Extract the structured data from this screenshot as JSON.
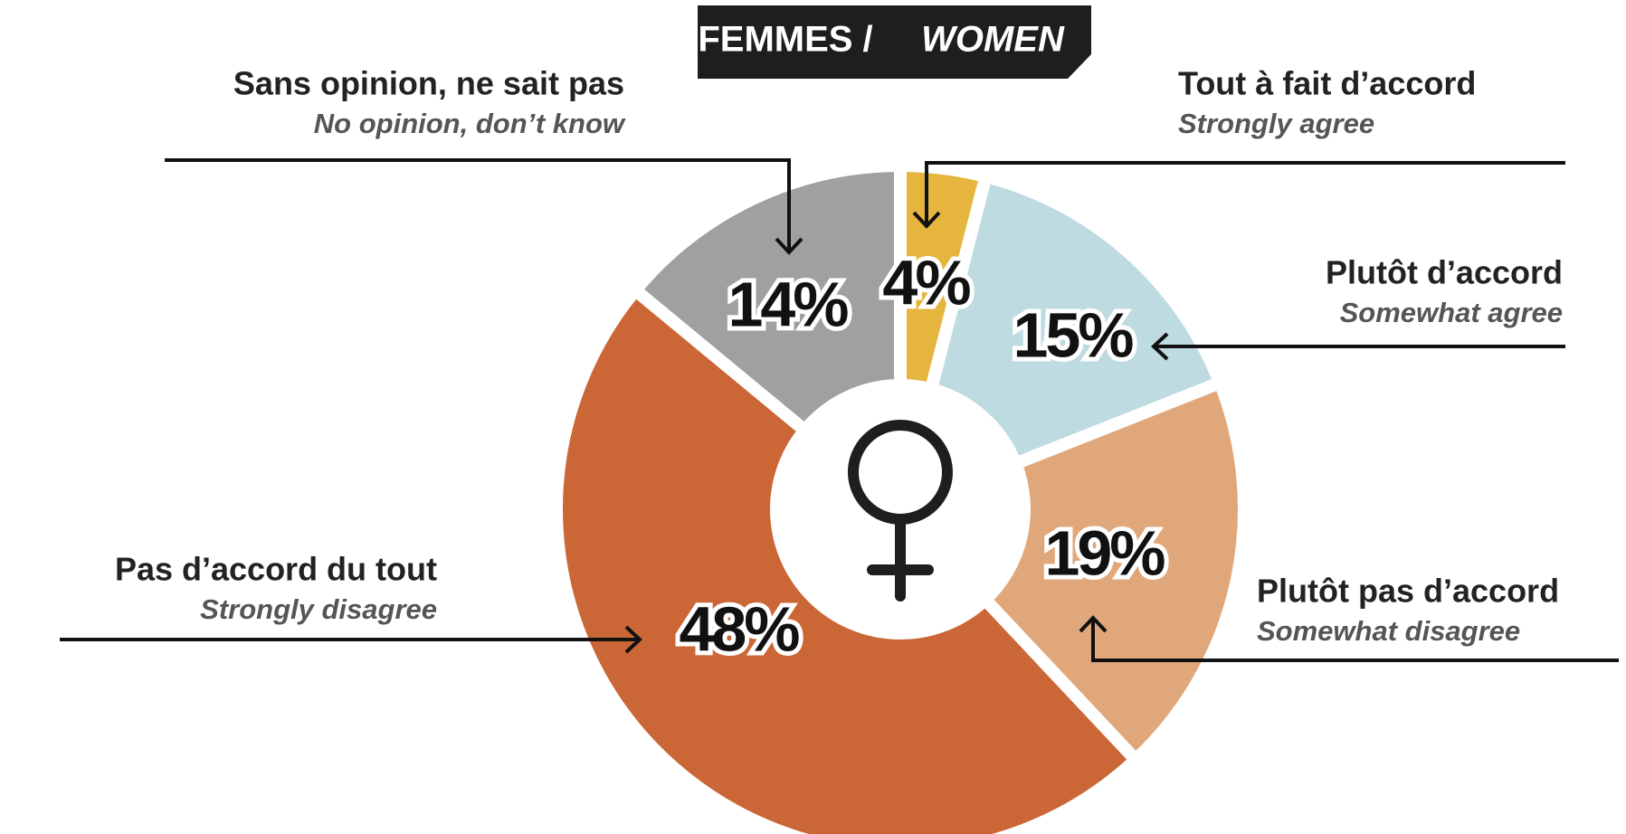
{
  "chart_data": {
    "type": "pie",
    "title": "FEMMES /",
    "title_en": "WOMEN",
    "categories": [
      "Tout à fait d’accord",
      "Plutôt d’accord",
      "Plutôt pas d’accord",
      "Pas d’accord du tout",
      "Sans opinion, ne sait pas"
    ],
    "categories_en": [
      "Strongly agree",
      "Somewhat agree",
      "Somewhat disagree",
      "Strongly disagree",
      "No opinion, don’t know"
    ],
    "values": [
      4,
      15,
      19,
      48,
      14
    ],
    "value_labels": [
      "4%",
      "15%",
      "19%",
      "48%",
      "14%"
    ],
    "colors": [
      "#e6b53e",
      "#bddbe0",
      "#e0a77b",
      "#cb6736",
      "#a0a0a0"
    ]
  }
}
